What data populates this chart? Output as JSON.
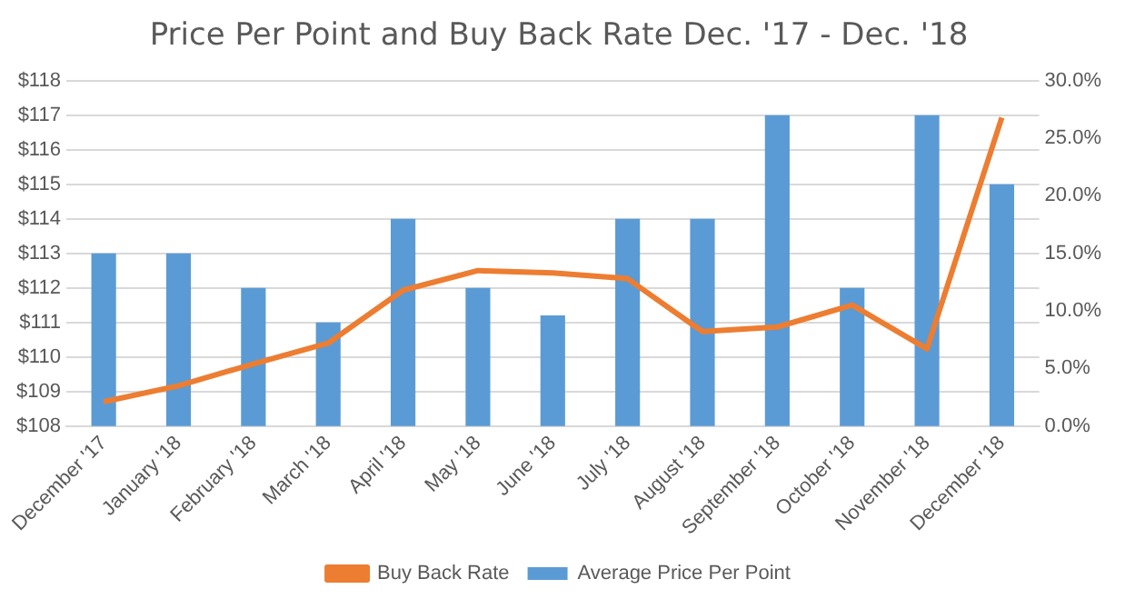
{
  "chart_data": {
    "type": "bar",
    "title": "Price Per Point and Buy Back Rate Dec. '17 - Dec. '18",
    "categories": [
      "December '17",
      "January '18",
      "February '18",
      "March '18",
      "April '18",
      "May '18",
      "June '18",
      "July '18",
      "August '18",
      "September '18",
      "October '18",
      "November '18",
      "December '18"
    ],
    "series": [
      {
        "name": "Average Price Per Point",
        "color": "#5b9bd5",
        "values": [
          113,
          113,
          112,
          111,
          114,
          112,
          111.2,
          114,
          114,
          117,
          112,
          117,
          115
        ]
      },
      {
        "name": "Buy Back Rate",
        "type": "line",
        "axis": "y2",
        "color": "#ed7d31",
        "values": [
          2.1,
          3.5,
          5.4,
          7.2,
          11.8,
          13.5,
          13.3,
          12.8,
          8.2,
          8.6,
          10.5,
          6.7,
          26.8
        ]
      }
    ],
    "ylim": [
      108,
      118
    ],
    "yticks": [
      {
        "value": 108,
        "label": "$108"
      },
      {
        "value": 109,
        "label": "$109"
      },
      {
        "value": 110,
        "label": "$110"
      },
      {
        "value": 111,
        "label": "$111"
      },
      {
        "value": 112,
        "label": "$112"
      },
      {
        "value": 113,
        "label": "$113"
      },
      {
        "value": 114,
        "label": "$114"
      },
      {
        "value": 115,
        "label": "$115"
      },
      {
        "value": 116,
        "label": "$116"
      },
      {
        "value": 117,
        "label": "$117"
      },
      {
        "value": 118,
        "label": "$118"
      }
    ],
    "y2lim": [
      0,
      30
    ],
    "y2ticks": [
      {
        "value": 0,
        "label": "0.0%"
      },
      {
        "value": 5,
        "label": "5.0%"
      },
      {
        "value": 10,
        "label": "10.0%"
      },
      {
        "value": 15,
        "label": "15.0%"
      },
      {
        "value": 20,
        "label": "20.0%"
      },
      {
        "value": 25,
        "label": "25.0%"
      },
      {
        "value": 30,
        "label": "30.0%"
      }
    ],
    "grid": "y",
    "legend": "bottom",
    "marker": "none"
  }
}
